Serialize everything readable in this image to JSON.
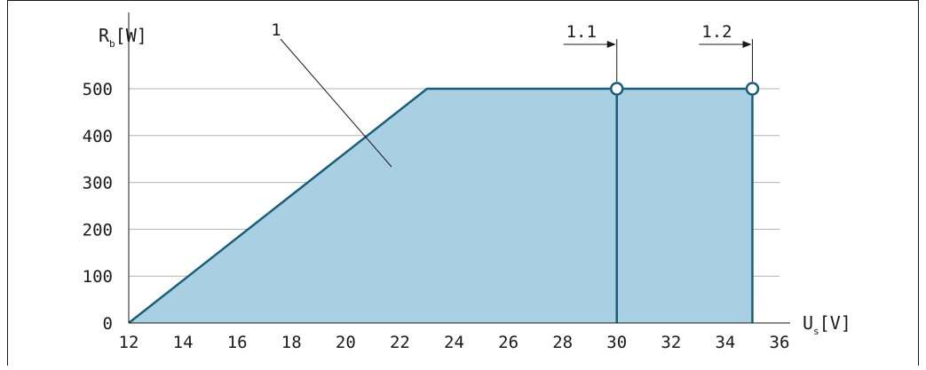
{
  "chart_data": {
    "type": "area",
    "x": [
      12,
      23,
      30,
      30,
      35,
      35
    ],
    "y": [
      0,
      500,
      500,
      0,
      500,
      0
    ],
    "region": [
      [
        12,
        0
      ],
      [
        23,
        500
      ],
      [
        35,
        500
      ],
      [
        35,
        0
      ]
    ],
    "divider_x": 30,
    "markers": [
      {
        "x": 30,
        "y": 500,
        "label": "1.1"
      },
      {
        "x": 35,
        "y": 500,
        "label": "1.2"
      }
    ],
    "region_label": "1",
    "xlim": [
      12,
      36
    ],
    "ylim": [
      0,
      500
    ],
    "xticks": [
      12,
      14,
      16,
      18,
      20,
      22,
      24,
      26,
      28,
      30,
      32,
      34,
      36
    ],
    "yticks": [
      0,
      100,
      200,
      300,
      400,
      500
    ],
    "xlabel": {
      "main": "U",
      "sub": "s",
      "unit": "[V]"
    },
    "ylabel": {
      "main": "R",
      "sub": "b",
      "unit": "[W]"
    },
    "grid": "horizontal",
    "colors": {
      "fill": "#a9cfe3",
      "line": "#1a5f7a",
      "grid": "#b3b3b3",
      "axis": "#1a1a1a"
    }
  }
}
